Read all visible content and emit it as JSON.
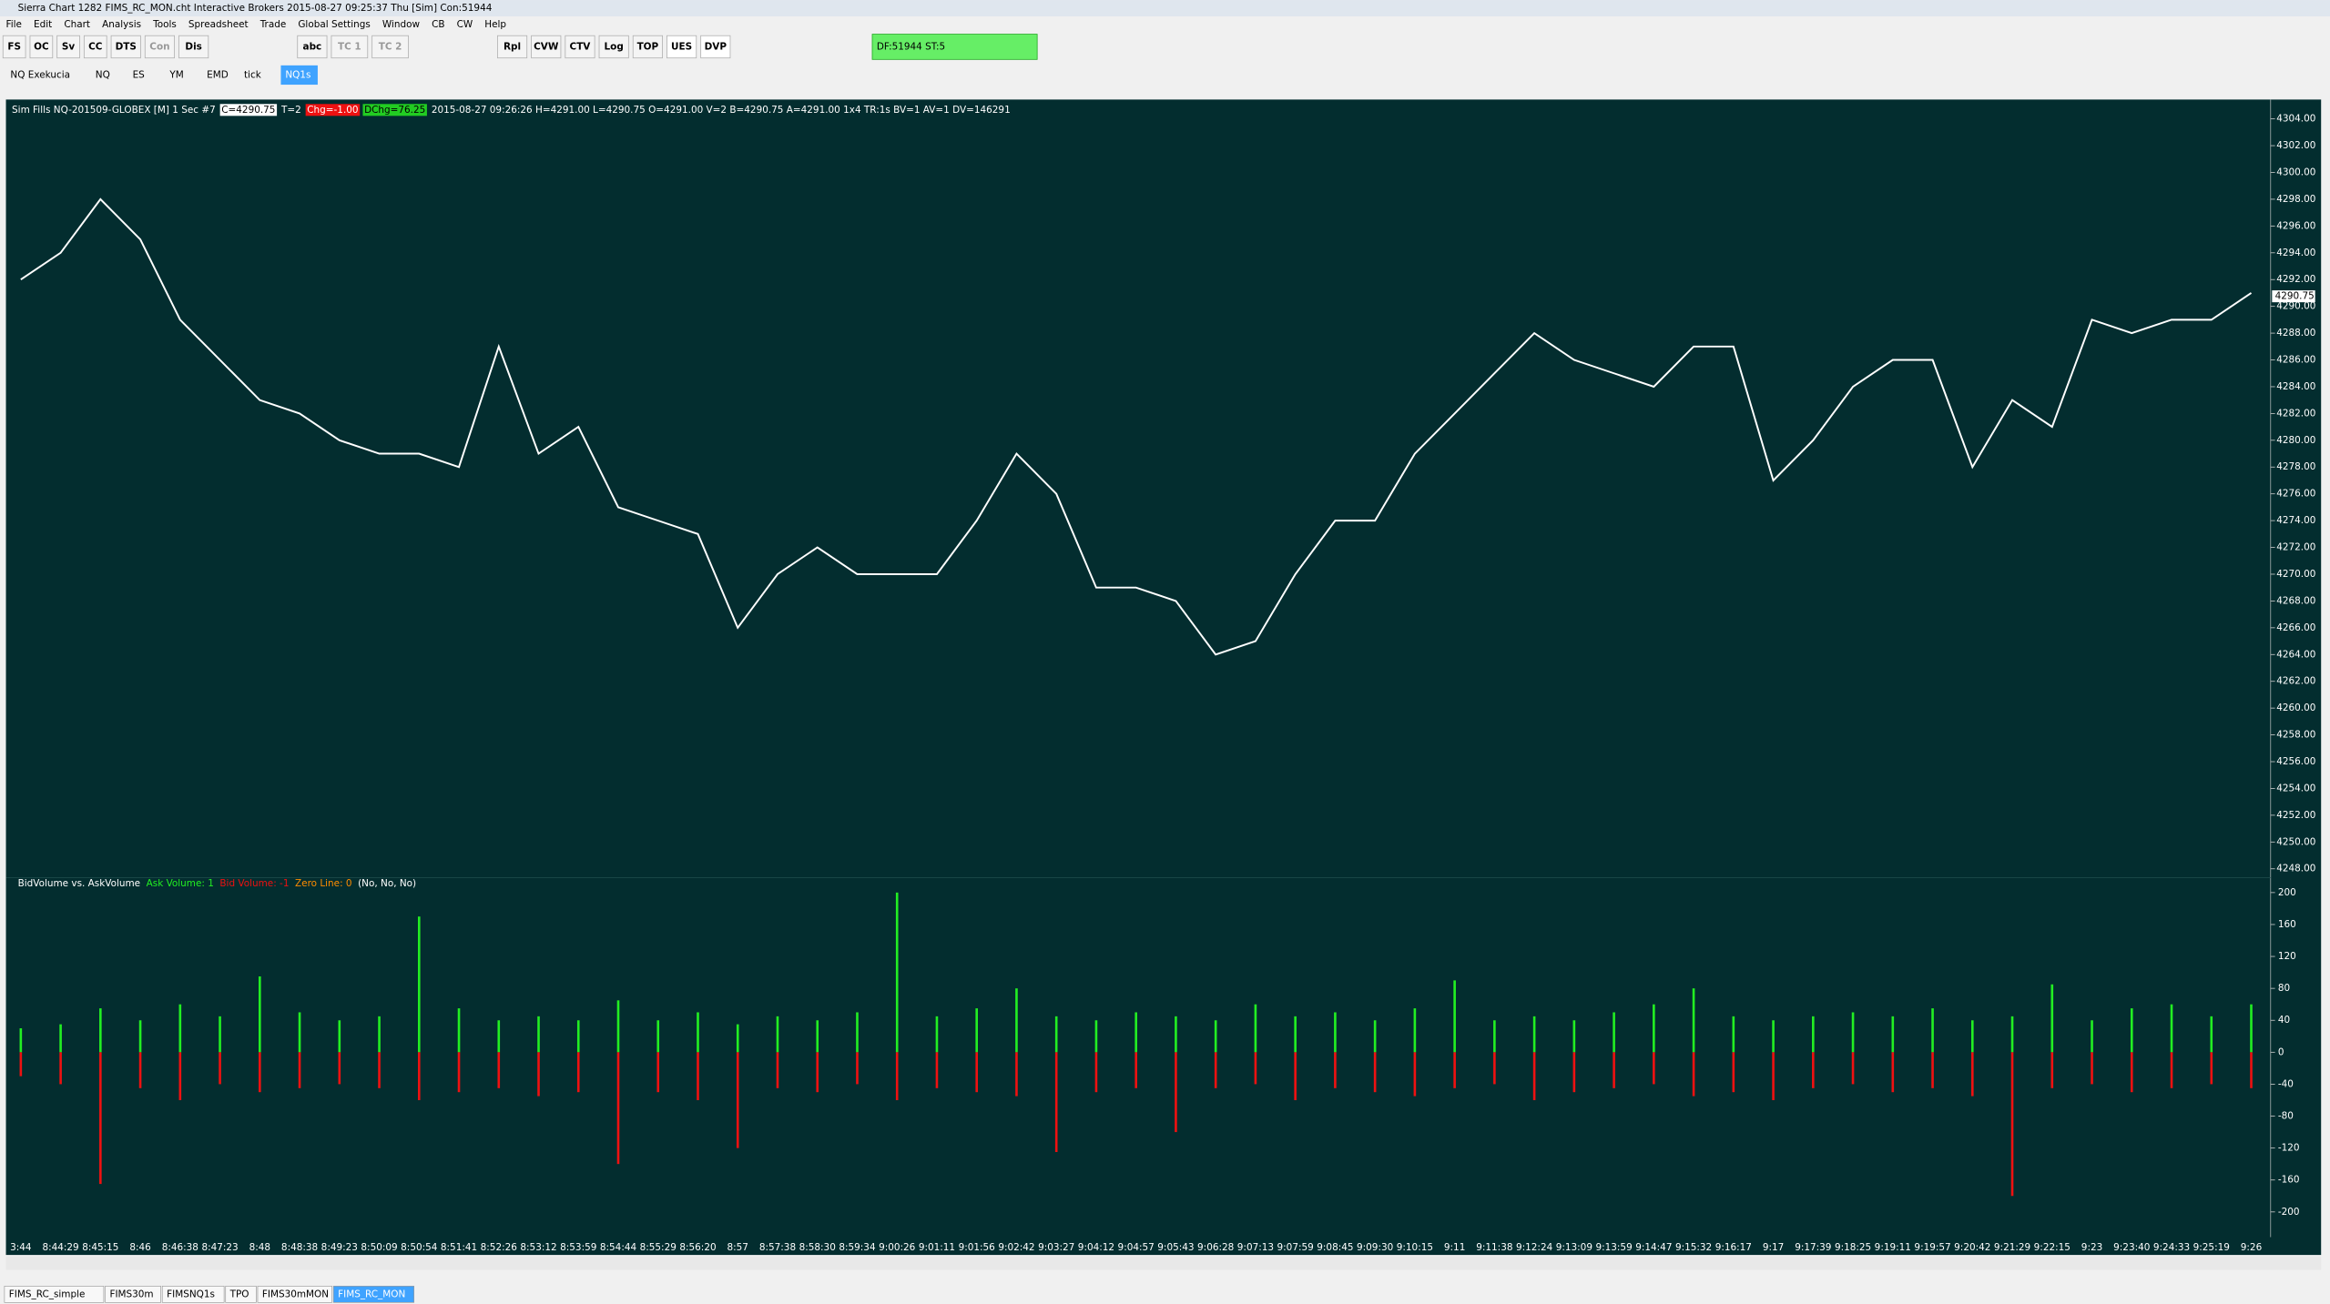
{
  "window": {
    "title": "Sierra Chart 1282 FIMS_RC_MON.cht  Interactive Brokers 2015-08-27  09:25:37 Thu [Sim]  Con:51944",
    "menu": [
      "File",
      "Edit",
      "Chart",
      "Analysis",
      "Tools",
      "Spreadsheet",
      "Trade",
      "Global Settings",
      "Window",
      "CB",
      "CW",
      "Help"
    ],
    "toolbar": [
      "FS",
      "OC",
      "Sv",
      "CC",
      "DTS",
      "Con",
      "Dis",
      "abc",
      "TC 1",
      "TC 2",
      "Rpl",
      "CVW",
      "CTV",
      "Log",
      "TOP",
      "UES",
      "DVP"
    ],
    "status": "DF:51944  ST:5"
  },
  "chart_tabs": [
    "NQ Exekucia",
    "NQ",
    "ES",
    "YM",
    "EMD",
    "tick",
    "NQ1s"
  ],
  "sheet_tabs": [
    "FIMS_RC_simple",
    "FIMS30m",
    "FIMSNQ1s",
    "TPO",
    "FIMS30mMON",
    "FIMS_RC_MON"
  ],
  "chart_data": [
    {
      "type": "line",
      "title": "Sim Fills  NQ-201509-GLOBEX [M]  1 Sec  #7",
      "close_label": "C=4290.75",
      "trades_label": "T=2",
      "change_label": "Chg=-1.00",
      "daily_change_label": "DChg=76.25",
      "info": "2015-08-27 09:26:26 H=4291.00 L=4290.75 O=4291.00 V=2 B=4290.75 A=4291.00 1x4 TR:1s BV=1 AV=1 DV=146291",
      "color": "#ffffff",
      "last_price": 4290.75,
      "values": [
        4292,
        4294,
        4298,
        4295,
        4289,
        4286,
        4283,
        4282,
        4280,
        4279,
        4279,
        4278,
        4287,
        4279,
        4281,
        4275,
        4274,
        4273,
        4266,
        4270,
        4272,
        4270,
        4270,
        4270,
        4274,
        4279,
        4276,
        4269,
        4269,
        4268,
        4264,
        4265,
        4270,
        4274,
        4274,
        4279,
        4282,
        4285,
        4288,
        4286,
        4285,
        4284,
        4287,
        4287,
        4277,
        4280,
        4284,
        4286,
        4286,
        4278,
        4283,
        4281,
        4289,
        4288,
        4289,
        4289,
        4291
      ],
      "ylim": [
        4247,
        4305
      ],
      "yticks": [
        {
          "value": 4248,
          "label": "4248.00"
        },
        {
          "value": 4250,
          "label": "4250.00"
        },
        {
          "value": 4252,
          "label": "4252.00"
        },
        {
          "value": 4254,
          "label": "4254.00"
        },
        {
          "value": 4256,
          "label": "4256.00"
        },
        {
          "value": 4258,
          "label": "4258.00"
        },
        {
          "value": 4260,
          "label": "4260.00"
        },
        {
          "value": 4262,
          "label": "4262.00"
        },
        {
          "value": 4264,
          "label": "4264.00"
        },
        {
          "value": 4266,
          "label": "4266.00"
        },
        {
          "value": 4268,
          "label": "4268.00"
        },
        {
          "value": 4270,
          "label": "4270.00"
        },
        {
          "value": 4272,
          "label": "4272.00"
        },
        {
          "value": 4274,
          "label": "4274.00"
        },
        {
          "value": 4276,
          "label": "4276.00"
        },
        {
          "value": 4278,
          "label": "4278.00"
        },
        {
          "value": 4280,
          "label": "4280.00"
        },
        {
          "value": 4282,
          "label": "4282.00"
        },
        {
          "value": 4284,
          "label": "4284.00"
        },
        {
          "value": 4286,
          "label": "4286.00"
        },
        {
          "value": 4288,
          "label": "4288.00"
        },
        {
          "value": 4290,
          "label": "4290.00"
        },
        {
          "value": 4292,
          "label": "4292.00"
        },
        {
          "value": 4294,
          "label": "4294.00"
        },
        {
          "value": 4296,
          "label": "4296.00"
        },
        {
          "value": 4298,
          "label": "4298.00"
        },
        {
          "value": 4300,
          "label": "4300.00"
        },
        {
          "value": 4302,
          "label": "4302.00"
        },
        {
          "value": 4304,
          "label": "4304.00"
        }
      ]
    },
    {
      "type": "bar",
      "title": "BidVolume vs. AskVolume",
      "zero_line_label": "Zero Line: 0",
      "flags": "(No, No, No)",
      "categories": [
        "3:44",
        "8:44:29",
        "8:45:15",
        "8:46",
        "8:46:38",
        "8:47:23",
        "8:48",
        "8:48:38",
        "8:49:23",
        "8:50:09",
        "8:50:54",
        "8:51:41",
        "8:52:26",
        "8:53:12",
        "8:53:59",
        "8:54:44",
        "8:55:29",
        "8:56:20",
        "8:57",
        "8:57:38",
        "8:58:30",
        "8:59:34",
        "9:00:26",
        "9:01:11",
        "9:01:56",
        "9:02:42",
        "9:03:27",
        "9:04:12",
        "9:04:57",
        "9:05:43",
        "9:06:28",
        "9:07:13",
        "9:07:59",
        "9:08:45",
        "9:09:30",
        "9:10:15",
        "9:11",
        "9:11:38",
        "9:12:24",
        "9:13:09",
        "9:13:59",
        "9:14:47",
        "9:15:32",
        "9:16:17",
        "9:17",
        "9:17:39",
        "9:18:25",
        "9:19:11",
        "9:19:57",
        "9:20:42",
        "9:21:29",
        "9:22:15",
        "9:23",
        "9:23:40",
        "9:24:33",
        "9:25:19",
        "9:26"
      ],
      "series": [
        {
          "name": "Ask Volume: 1",
          "color": "#22ee22",
          "values": [
            30,
            35,
            55,
            40,
            60,
            45,
            95,
            50,
            40,
            45,
            170,
            55,
            40,
            45,
            40,
            65,
            40,
            50,
            35,
            45,
            40,
            50,
            200,
            45,
            55,
            80,
            45,
            40,
            50,
            45,
            40,
            60,
            45,
            50,
            40,
            55,
            90,
            40,
            45,
            40,
            50,
            60,
            80,
            45,
            40,
            45,
            50,
            45,
            55,
            40,
            45,
            85,
            40,
            55,
            60,
            45,
            60
          ]
        },
        {
          "name": "Bid Volume: -1",
          "color": "#ee1111",
          "values": [
            -30,
            -40,
            -165,
            -45,
            -60,
            -40,
            -50,
            -45,
            -40,
            -45,
            -60,
            -50,
            -45,
            -55,
            -50,
            -140,
            -50,
            -60,
            -120,
            -45,
            -50,
            -40,
            -60,
            -45,
            -50,
            -55,
            -125,
            -50,
            -45,
            -100,
            -45,
            -40,
            -60,
            -45,
            -50,
            -55,
            -45,
            -40,
            -60,
            -50,
            -45,
            -40,
            -55,
            -50,
            -60,
            -45,
            -40,
            -50,
            -45,
            -55,
            -180,
            -45,
            -40,
            -50,
            -45,
            -40,
            -45
          ]
        }
      ],
      "ylim": [
        -226,
        213
      ],
      "yticks": [
        200,
        160,
        120,
        80,
        40,
        0,
        -40,
        -80,
        -120,
        -160,
        -200
      ]
    }
  ]
}
